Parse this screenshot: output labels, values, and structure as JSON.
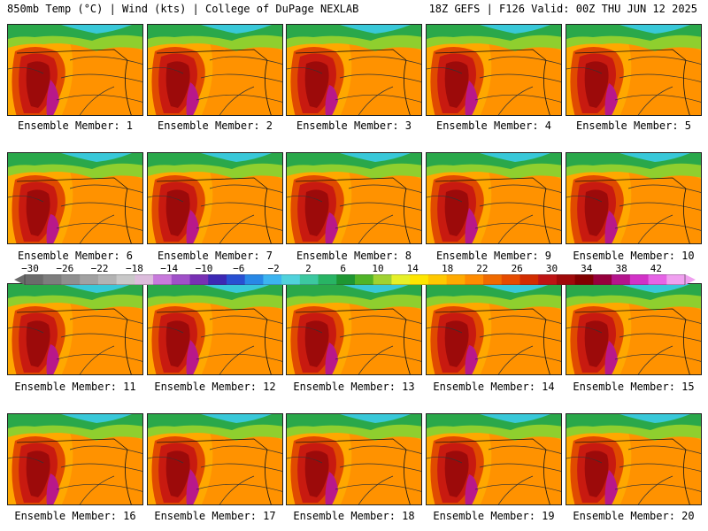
{
  "header": {
    "left": "850mb Temp (°C) | Wind (kts) | College of DuPage NEXLAB",
    "right": "18Z GEFS | F126 Valid: 00Z THU JUN 12 2025"
  },
  "panels": [
    {
      "label": "Ensemble Member: 1"
    },
    {
      "label": "Ensemble Member: 2"
    },
    {
      "label": "Ensemble Member: 3"
    },
    {
      "label": "Ensemble Member: 4"
    },
    {
      "label": "Ensemble Member: 5"
    },
    {
      "label": "Ensemble Member: 6"
    },
    {
      "label": "Ensemble Member: 7"
    },
    {
      "label": "Ensemble Member: 8"
    },
    {
      "label": "Ensemble Member: 9"
    },
    {
      "label": "Ensemble Member: 10"
    },
    {
      "label": "Ensemble Member: 11"
    },
    {
      "label": "Ensemble Member: 12"
    },
    {
      "label": "Ensemble Member: 13"
    },
    {
      "label": "Ensemble Member: 14"
    },
    {
      "label": "Ensemble Member: 15"
    },
    {
      "label": "Ensemble Member: 16"
    },
    {
      "label": "Ensemble Member: 17"
    },
    {
      "label": "Ensemble Member: 18"
    },
    {
      "label": "Ensemble Member: 19"
    },
    {
      "label": "Ensemble Member: 20"
    }
  ],
  "colorbar": {
    "ticks": [
      "−30",
      "−26",
      "−22",
      "−18",
      "−14",
      "−10",
      "−6",
      "−2",
      "2",
      "6",
      "10",
      "14",
      "18",
      "22",
      "26",
      "30",
      "34",
      "38",
      "42"
    ],
    "colors": [
      "#6b6b6b",
      "#7d7d7d",
      "#8f8f8f",
      "#a1a1a1",
      "#b3b3b3",
      "#c8c8c8",
      "#dcbcdc",
      "#c87adc",
      "#a050c8",
      "#7830b4",
      "#3c28b4",
      "#2850d2",
      "#2888e6",
      "#3cb4f0",
      "#50d2dc",
      "#3cc8a0",
      "#28b464",
      "#1e9632",
      "#50b428",
      "#a0d232",
      "#e6f028",
      "#ffe600",
      "#ffc800",
      "#ffaa00",
      "#ff8c00",
      "#f06a00",
      "#e64b00",
      "#d22d00",
      "#be1414",
      "#a00a0a",
      "#820000",
      "#96003c",
      "#b4148c",
      "#d232c8",
      "#e664e6",
      "#f0a0f0"
    ]
  }
}
